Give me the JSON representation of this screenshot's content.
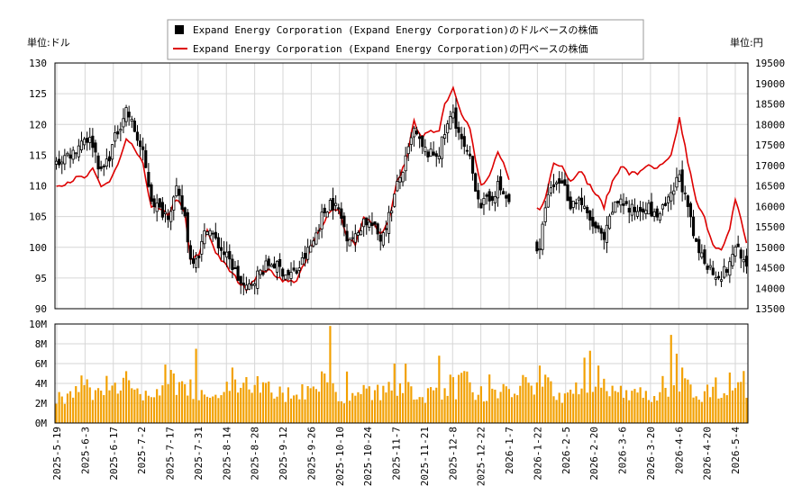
{
  "chart_data": {
    "type": "candlestick_line_bar",
    "legend": [
      {
        "label": "Expand Energy Corporation (Expand Energy Corporation)のドルベースの株価",
        "color": "#000000",
        "marker": "square"
      },
      {
        "label": "Expand Energy Corporation (Expand Energy Corporation)の円ベースの株価",
        "color": "#dd0000",
        "marker": "line"
      }
    ],
    "left_unit": "単位:ドル",
    "right_unit": "単位:円",
    "price_axis": {
      "min": 90,
      "max": 130,
      "ticks": [
        90,
        95,
        100,
        105,
        110,
        115,
        120,
        125,
        130
      ]
    },
    "yen_axis": {
      "min": 13500,
      "max": 19500,
      "ticks": [
        13500,
        14000,
        14500,
        15000,
        15500,
        16000,
        16500,
        17000,
        17500,
        18000,
        18500,
        19000,
        19500
      ]
    },
    "volume_axis": {
      "max": 10000000,
      "ticks": [
        0,
        2000000,
        4000000,
        6000000,
        8000000,
        10000000
      ],
      "tick_labels": [
        "0M",
        "2M",
        "4M",
        "6M",
        "8M",
        "10M"
      ]
    },
    "x_tick_labels": [
      "2025-5-19",
      "2025-6-3",
      "2025-6-17",
      "2025-7-2",
      "2025-7-17",
      "2025-7-31",
      "2025-8-14",
      "2025-8-28",
      "2025-9-12",
      "2025-9-26",
      "2025-10-10",
      "2025-10-24",
      "2025-11-7",
      "2025-11-21",
      "2025-12-8",
      "2025-12-22",
      "2026-1-7",
      "2026-1-22",
      "2026-2-5",
      "2026-2-20",
      "2026-3-6",
      "2026-3-20",
      "2026-4-6",
      "2026-4-20",
      "2026-5-4"
    ],
    "trading_days": 248,
    "close_anchors": [
      [
        0,
        113.5
      ],
      [
        3,
        114.8
      ],
      [
        6,
        115.5
      ],
      [
        10,
        118
      ],
      [
        13,
        117
      ],
      [
        16,
        112
      ],
      [
        19,
        115
      ],
      [
        22,
        119
      ],
      [
        25,
        122.5
      ],
      [
        28,
        119
      ],
      [
        31,
        115
      ],
      [
        34,
        108
      ],
      [
        37,
        106
      ],
      [
        40,
        105.5
      ],
      [
        43,
        109
      ],
      [
        46,
        105
      ],
      [
        48,
        98
      ],
      [
        51,
        99
      ],
      [
        54,
        103.5
      ],
      [
        57,
        101
      ],
      [
        60,
        99
      ],
      [
        63,
        97
      ],
      [
        66,
        94
      ],
      [
        68,
        93
      ],
      [
        71,
        95
      ],
      [
        74,
        96.5
      ],
      [
        77,
        97.5
      ],
      [
        80,
        96.5
      ],
      [
        83,
        95.5
      ],
      [
        86,
        96
      ],
      [
        89,
        98.5
      ],
      [
        92,
        101
      ],
      [
        95,
        105
      ],
      [
        98,
        107.5
      ],
      [
        101,
        106
      ],
      [
        104,
        102
      ],
      [
        107,
        101.5
      ],
      [
        110,
        104.5
      ],
      [
        113,
        103.5
      ],
      [
        116,
        101.5
      ],
      [
        119,
        105
      ],
      [
        122,
        110
      ],
      [
        125,
        114
      ],
      [
        128,
        119
      ],
      [
        131,
        116
      ],
      [
        134,
        115
      ],
      [
        137,
        115.5
      ],
      [
        139,
        118.5
      ],
      [
        142,
        122
      ],
      [
        145,
        117
      ],
      [
        148,
        114
      ],
      [
        150,
        110
      ],
      [
        152,
        107
      ],
      [
        155,
        107.5
      ],
      [
        158,
        110
      ],
      [
        161,
        108
      ],
      [
        164,
        106
      ],
      [
        167,
        104
      ],
      [
        170,
        101.5
      ],
      [
        173,
        99
      ],
      [
        175,
        107
      ],
      [
        178,
        110
      ],
      [
        181,
        111
      ],
      [
        184,
        107
      ],
      [
        187,
        108
      ],
      [
        190,
        105
      ],
      [
        193,
        103
      ],
      [
        196,
        101
      ],
      [
        199,
        106
      ],
      [
        202,
        108
      ],
      [
        205,
        106
      ],
      [
        208,
        106
      ],
      [
        211,
        107
      ],
      [
        214,
        105
      ],
      [
        217,
        106
      ],
      [
        220,
        108
      ],
      [
        223,
        112
      ],
      [
        226,
        106
      ],
      [
        229,
        100
      ],
      [
        232,
        98
      ],
      [
        235,
        96
      ],
      [
        238,
        95.5
      ],
      [
        241,
        97
      ],
      [
        243,
        100.5
      ],
      [
        245,
        99
      ],
      [
        247,
        96
      ]
    ],
    "yen_anchors": [
      [
        0,
        16500
      ],
      [
        4,
        16600
      ],
      [
        8,
        16700
      ],
      [
        11,
        16700
      ],
      [
        13,
        16900
      ],
      [
        16,
        16500
      ],
      [
        19,
        16600
      ],
      [
        22,
        17000
      ],
      [
        25,
        17600
      ],
      [
        28,
        17400
      ],
      [
        31,
        17000
      ],
      [
        34,
        16000
      ],
      [
        37,
        15900
      ],
      [
        40,
        15800
      ],
      [
        43,
        16200
      ],
      [
        46,
        15800
      ],
      [
        48,
        14700
      ],
      [
        51,
        14800
      ],
      [
        54,
        15400
      ],
      [
        57,
        14900
      ],
      [
        60,
        14600
      ],
      [
        63,
        14350
      ],
      [
        66,
        14100
      ],
      [
        68,
        14000
      ],
      [
        71,
        14250
      ],
      [
        74,
        14450
      ],
      [
        77,
        14400
      ],
      [
        80,
        14250
      ],
      [
        83,
        14150
      ],
      [
        86,
        14200
      ],
      [
        89,
        14600
      ],
      [
        92,
        15100
      ],
      [
        95,
        15550
      ],
      [
        98,
        15900
      ],
      [
        101,
        15950
      ],
      [
        104,
        15200
      ],
      [
        107,
        15100
      ],
      [
        110,
        15700
      ],
      [
        113,
        15600
      ],
      [
        116,
        15300
      ],
      [
        119,
        15600
      ],
      [
        122,
        16600
      ],
      [
        125,
        17100
      ],
      [
        128,
        18050
      ],
      [
        131,
        17700
      ],
      [
        134,
        17800
      ],
      [
        137,
        17900
      ],
      [
        139,
        18500
      ],
      [
        142,
        18900
      ],
      [
        145,
        18300
      ],
      [
        148,
        17900
      ],
      [
        150,
        17100
      ],
      [
        152,
        16500
      ],
      [
        155,
        16700
      ],
      [
        158,
        17300
      ],
      [
        161,
        16900
      ],
      [
        164,
        16300
      ],
      [
        167,
        16100
      ],
      [
        170,
        16000
      ],
      [
        173,
        15900
      ],
      [
        175,
        16200
      ],
      [
        178,
        17100
      ],
      [
        181,
        17000
      ],
      [
        184,
        16600
      ],
      [
        187,
        16900
      ],
      [
        190,
        16600
      ],
      [
        193,
        16300
      ],
      [
        196,
        16000
      ],
      [
        199,
        16600
      ],
      [
        202,
        17000
      ],
      [
        205,
        16800
      ],
      [
        208,
        16800
      ],
      [
        211,
        17000
      ],
      [
        214,
        16900
      ],
      [
        217,
        17000
      ],
      [
        220,
        17200
      ],
      [
        223,
        18150
      ],
      [
        226,
        17100
      ],
      [
        229,
        16100
      ],
      [
        232,
        15700
      ],
      [
        235,
        15100
      ],
      [
        238,
        14900
      ],
      [
        241,
        15400
      ],
      [
        243,
        16200
      ],
      [
        245,
        15700
      ],
      [
        247,
        15100
      ]
    ],
    "volume_baseline_millions": [
      2.6,
      2.4,
      2.9,
      2.2,
      2.5,
      3.0,
      2.7,
      3.1,
      2.6,
      2.8,
      3.3,
      3.9,
      2.9,
      2.6,
      3.4,
      3.0,
      2.8,
      3.6,
      4.1,
      3.2,
      2.9,
      3.3,
      3.6,
      3.1,
      3.5,
      4.5,
      3.8,
      3.2,
      2.6,
      2.7,
      3.0,
      2.4,
      2.6,
      2.9,
      3.1,
      2.8,
      3.4,
      3.0,
      2.9,
      2.7,
      3.3,
      4.2,
      3.6,
      3.1,
      3.8,
      4.0,
      3.9,
      3.2,
      3.4,
      3.1
    ],
    "volume_peaks": [
      {
        "day": 9,
        "millions": 4.8
      },
      {
        "day": 39,
        "millions": 5.9
      },
      {
        "day": 42,
        "millions": 5.0
      },
      {
        "day": 50,
        "millions": 7.5
      },
      {
        "day": 63,
        "millions": 5.6
      },
      {
        "day": 98,
        "millions": 9.8
      },
      {
        "day": 104,
        "millions": 5.2
      },
      {
        "day": 121,
        "millions": 6.0
      },
      {
        "day": 137,
        "millions": 6.8
      },
      {
        "day": 147,
        "millions": 5.2
      },
      {
        "day": 155,
        "millions": 4.9
      },
      {
        "day": 173,
        "millions": 5.8
      },
      {
        "day": 189,
        "millions": 6.6
      },
      {
        "day": 191,
        "millions": 7.3
      },
      {
        "day": 194,
        "millions": 5.8
      },
      {
        "day": 220,
        "millions": 8.9
      },
      {
        "day": 222,
        "millions": 7.0
      },
      {
        "day": 224,
        "millions": 5.6
      },
      {
        "day": 236,
        "millions": 4.6
      },
      {
        "day": 241,
        "millions": 5.1
      }
    ],
    "colors": {
      "volume": "#f2a000",
      "price": "#000000",
      "yen": "#dd0000",
      "grid": "#d6d6d6"
    }
  }
}
